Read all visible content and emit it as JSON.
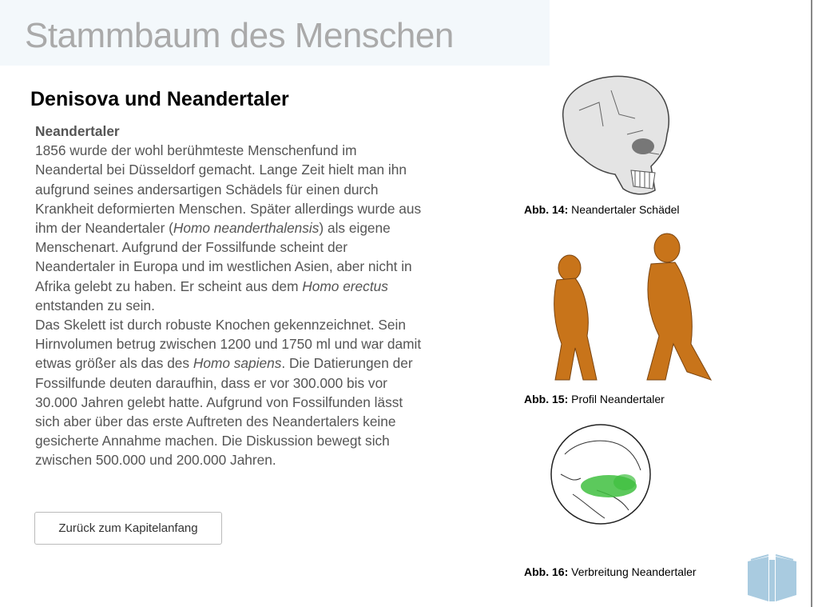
{
  "header": {
    "title": "Stammbaum des Menschen"
  },
  "section": {
    "title": "Denisova und Neandertaler"
  },
  "article": {
    "subtitle": "Neandertaler",
    "lines": [
      [
        {
          "t": "1856 wurde der wohl berühmteste Menschenfund im"
        }
      ],
      [
        {
          "t": "Neandertal bei Düsseldorf gemacht. Lange Zeit hielt man ihn"
        }
      ],
      [
        {
          "t": "aufgrund seines andersartigen Schädels für einen durch"
        }
      ],
      [
        {
          "t": "Krankheit deformierten Menschen. Später allerdings wurde aus"
        }
      ],
      [
        {
          "t": "ihm der Neandertaler ("
        },
        {
          "t": "Homo neanderthalensis",
          "i": true
        },
        {
          "t": ") als eigene"
        }
      ],
      [
        {
          "t": "Menschenart. Aufgrund der Fossilfunde scheint der"
        }
      ],
      [
        {
          "t": "Neandertaler in Europa und im westlichen Asien, aber nicht in"
        }
      ],
      [
        {
          "t": "Afrika gelebt zu haben. Er scheint aus dem "
        },
        {
          "t": "Homo erectus",
          "i": true
        }
      ],
      [
        {
          "t": "entstanden zu sein."
        }
      ],
      [
        {
          "t": "Das Skelett ist durch robuste Knochen gekennzeichnet. Sein"
        }
      ],
      [
        {
          "t": "Hirnvolumen betrug zwischen 1200 und 1750 ml und war damit"
        }
      ],
      [
        {
          "t": "etwas größer als das des "
        },
        {
          "t": "Homo sapiens",
          "i": true
        },
        {
          "t": ". Die Datierungen der"
        }
      ],
      [
        {
          "t": "Fossilfunde deuten daraufhin, dass er vor  300.000 bis vor"
        }
      ],
      [
        {
          "t": "30.000 Jahren gelebt hatte. Aufgrund von Fossilfunden lässt"
        }
      ],
      [
        {
          "t": "sich aber über das erste Auftreten des Neandertalers keine"
        }
      ],
      [
        {
          "t": "gesicherte Annahme machen. Die Diskussion bewegt sich"
        }
      ],
      [
        {
          "t": "zwischen 500.000 und 200.000 Jahren."
        }
      ]
    ]
  },
  "back_button": "Zurück zum Kapitelanfang",
  "figures": [
    {
      "label": "Abb. 14:",
      "caption": "Neandertaler Schädel"
    },
    {
      "label": "Abb. 15:",
      "caption": "Profil Neandertaler"
    },
    {
      "label": "Abb. 16:",
      "caption": "Verbreitung Neandertaler"
    }
  ],
  "colors": {
    "header_bg": "#f3f8fb",
    "title": "#aaaaaa",
    "figure_body": "#c8741a",
    "range_green": "#3fbf3f",
    "book_icon": "#a9cbe0"
  },
  "icons": {
    "corner": "book-icon"
  }
}
